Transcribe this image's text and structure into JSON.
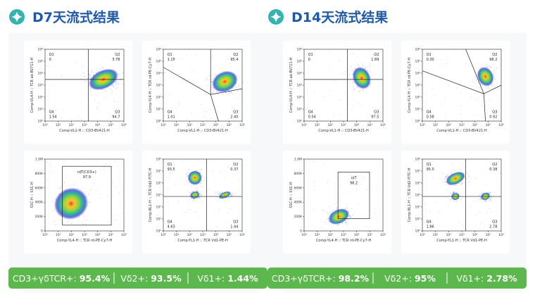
{
  "panels": [
    {
      "title": "D7天流式结果",
      "plots": [
        {
          "y_label": "Comp-VL4-H :: TCR ab-BV711-H",
          "x_label": "Comp-VL1-H :: CD3-BV421-H",
          "x_ticks": [
            "10⁰",
            "10¹",
            "10²",
            "10³",
            "10⁴",
            "10⁵",
            "10⁶"
          ],
          "y_ticks": [
            "10⁰",
            "10¹",
            "10²",
            "10³",
            "10⁴",
            "10⁵",
            "10⁶"
          ],
          "quadrants": [
            {
              "name": "Q1",
              "value": "0"
            },
            {
              "name": "Q2",
              "value": "3.78"
            },
            {
              "name": "Q3",
              "value": "94.7"
            },
            {
              "name": "Q4",
              "value": "1.54"
            }
          ]
        },
        {
          "y_label": "Comp-YL4-H :: TCR rd-PE-Cy7-H",
          "x_label": "Comp-VL1-H :: CD3-BV421-H",
          "x_ticks": [
            "10⁰",
            "10¹",
            "10²",
            "10³",
            "10⁴",
            "10⁵",
            "10⁶"
          ],
          "y_ticks": [
            "10⁰",
            "10¹",
            "10²",
            "10³",
            "10⁴",
            "10⁵",
            "10⁶"
          ],
          "quadrants": [
            {
              "name": "Q1",
              "value": "1.15"
            },
            {
              "name": "Q2",
              "value": "95.4"
            },
            {
              "name": "Q3",
              "value": "2.40"
            },
            {
              "name": "Q4",
              "value": "1.01"
            }
          ]
        },
        {
          "y_label": "SSC-H :: SSC-H",
          "x_label": "Comp-YL4-H :: TCR rd-PE-Cy7-H",
          "x_ticks": [
            "10⁰",
            "10¹",
            "10²",
            "10³",
            "10⁴",
            "10⁵",
            "10⁶"
          ],
          "y_ticks": [
            "0",
            "200K",
            "400K",
            "600K",
            "800K",
            "1.0M"
          ],
          "gate": {
            "name": "rdT(CD3+)",
            "value": "97.9"
          }
        },
        {
          "y_label": "Comp-BL1-H :: TCR Vd2-FITC-H",
          "x_label": "Comp-YL1-H :: TCR Vd1-PE-H",
          "x_ticks": [
            "10⁰",
            "10¹",
            "10²",
            "10³",
            "10⁴",
            "10⁵",
            "10⁶"
          ],
          "y_ticks": [
            "10⁰",
            "10¹",
            "10²",
            "10³",
            "10⁴",
            "10⁵",
            "10⁶"
          ],
          "quadrants": [
            {
              "name": "Q1",
              "value": "93.5"
            },
            {
              "name": "Q2",
              "value": "0.37"
            },
            {
              "name": "Q3",
              "value": "1.44"
            },
            {
              "name": "Q4",
              "value": "4.63"
            }
          ]
        }
      ],
      "summary": [
        {
          "label": "CD3+γδTCR+:",
          "value": "95.4%"
        },
        {
          "label": "Vδ2+:",
          "value": "93.5%"
        },
        {
          "label": "Vδ1+:",
          "value": "1.44%"
        }
      ]
    },
    {
      "title": "D14天流式结果",
      "plots": [
        {
          "y_label": "Comp-VL4-H :: TCR ab-BV711-H",
          "x_label": "Comp-VL1-H :: CD3-BV421-H",
          "x_ticks": [
            "10⁰",
            "10¹",
            "10²",
            "10³",
            "10⁴",
            "10⁵",
            "10⁶"
          ],
          "y_ticks": [
            "10⁰",
            "10¹",
            "10²",
            "10³",
            "10⁴",
            "10⁵",
            "10⁶"
          ],
          "quadrants": [
            {
              "name": "Q1",
              "value": "0"
            },
            {
              "name": "Q2",
              "value": "1.89"
            },
            {
              "name": "Q3",
              "value": "97.5"
            },
            {
              "name": "Q4",
              "value": "0.54"
            }
          ]
        },
        {
          "y_label": "Comp-YL4-H :: TCR rd-PE-Cy7-H",
          "x_label": "Comp-VL1-H :: CD3-BV421-H",
          "x_ticks": [
            "10⁰",
            "10¹",
            "10²",
            "10³",
            "10⁴",
            "10⁵",
            "10⁶"
          ],
          "y_ticks": [
            "10⁰",
            "10¹",
            "10²",
            "10³",
            "10⁴",
            "10⁵",
            "10⁶"
          ],
          "quadrants": [
            {
              "name": "Q1",
              "value": "0.30"
            },
            {
              "name": "Q2",
              "value": "98.2"
            },
            {
              "name": "Q3",
              "value": "0.92"
            },
            {
              "name": "Q4",
              "value": "0.58"
            }
          ]
        },
        {
          "y_label": "SSC-H :: SSC-H",
          "x_label": "Comp-YL4-H :: TCR rd-PE-Cy7-H",
          "x_ticks": [
            "10⁰",
            "10¹",
            "10²",
            "10³",
            "10⁴",
            "10⁵",
            "10⁶"
          ],
          "y_ticks": [
            "0",
            "200K",
            "400K",
            "600K",
            "800K",
            "1.0M"
          ],
          "gate": {
            "name": "rdT",
            "value": "98.2"
          }
        },
        {
          "y_label": "Comp-BL1-H :: TCR Vd2-FITC-H",
          "x_label": "Comp-YL1-H :: TCR Vd1-PE-H",
          "x_ticks": [
            "10⁰",
            "10¹",
            "10²",
            "10³",
            "10⁴",
            "10⁵",
            "10⁶"
          ],
          "y_ticks": [
            "10⁰",
            "10¹",
            "10²",
            "10³",
            "10⁴",
            "10⁵",
            "10⁶"
          ],
          "quadrants": [
            {
              "name": "Q1",
              "value": "95.0"
            },
            {
              "name": "Q2",
              "value": "0.38"
            },
            {
              "name": "Q3",
              "value": "2.78"
            },
            {
              "name": "Q4",
              "value": "1.86"
            }
          ]
        }
      ],
      "summary": [
        {
          "label": "CD3+γδTCR+:",
          "value": "98.2%"
        },
        {
          "label": "Vδ2+:",
          "value": "95%"
        },
        {
          "label": "Vδ1+:",
          "value": "2.78%"
        }
      ]
    }
  ]
}
